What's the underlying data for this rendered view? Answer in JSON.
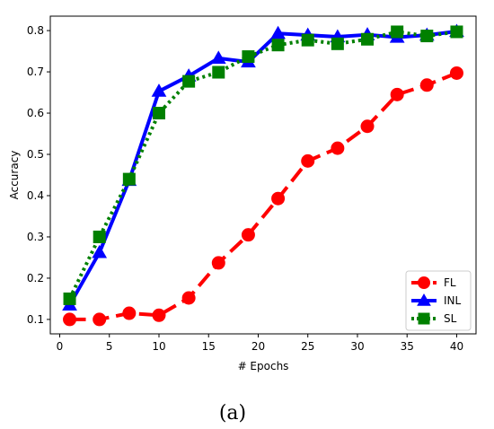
{
  "chart_data": {
    "type": "line",
    "title": "",
    "xlabel": "# Epochs",
    "ylabel": "Accuracy",
    "xlim": [
      -0.95,
      41.95
    ],
    "ylim": [
      0.065,
      0.835
    ],
    "xticks": [
      0,
      5,
      10,
      15,
      20,
      25,
      30,
      35,
      40
    ],
    "yticks": [
      0.1,
      0.2,
      0.3,
      0.4,
      0.5,
      0.6,
      0.7,
      0.8
    ],
    "grid": false,
    "legend_position": "lower-right",
    "x": [
      1,
      4,
      7,
      10,
      13,
      16,
      19,
      22,
      25,
      28,
      31,
      34,
      37,
      40
    ],
    "series": [
      {
        "name": "FL",
        "color": "#ff0000",
        "line_style": "dashed",
        "marker": "circle",
        "values": [
          0.1,
          0.1,
          0.115,
          0.11,
          0.152,
          0.237,
          0.305,
          0.393,
          0.484,
          0.515,
          0.568,
          0.645,
          0.668,
          0.697
        ]
      },
      {
        "name": "INL",
        "color": "#0000ff",
        "line_style": "solid",
        "marker": "triangle",
        "values": [
          0.135,
          0.262,
          0.437,
          0.653,
          0.69,
          0.733,
          0.724,
          0.793,
          0.789,
          0.785,
          0.79,
          0.784,
          0.789,
          0.798
        ]
      },
      {
        "name": "SL",
        "color": "#008000",
        "line_style": "dotted",
        "marker": "square",
        "values": [
          0.15,
          0.3,
          0.44,
          0.6,
          0.677,
          0.699,
          0.737,
          0.765,
          0.777,
          0.768,
          0.779,
          0.797,
          0.787,
          0.797
        ]
      }
    ]
  },
  "caption": "(a)"
}
